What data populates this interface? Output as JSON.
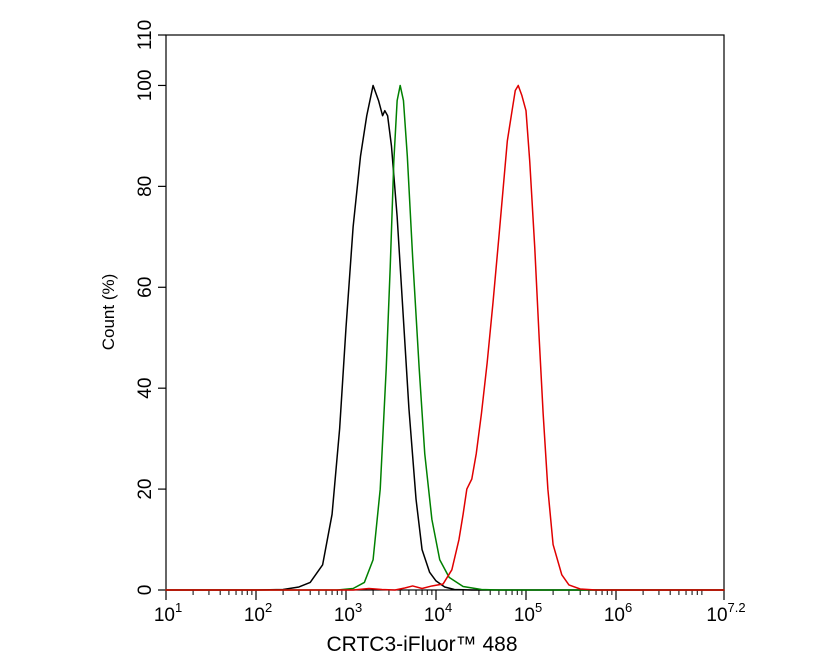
{
  "chart_data": {
    "type": "line",
    "xlabel": "CRTC3-iFluor™ 488",
    "ylabel": "Count  (%)",
    "x_scale": "log",
    "xlim": [
      10,
      15848932
    ],
    "ylim": [
      0,
      110
    ],
    "x_ticks": [
      {
        "value": 10,
        "base": "10",
        "exp": "1"
      },
      {
        "value": 100,
        "base": "10",
        "exp": "2"
      },
      {
        "value": 1000,
        "base": "10",
        "exp": "3"
      },
      {
        "value": 10000,
        "base": "10",
        "exp": "4"
      },
      {
        "value": 100000,
        "base": "10",
        "exp": "5"
      },
      {
        "value": 1000000,
        "base": "10",
        "exp": "6"
      },
      {
        "value": 15848932,
        "base": "10",
        "exp": "7.2"
      }
    ],
    "y_ticks": [
      {
        "value": 0,
        "label": "0"
      },
      {
        "value": 20,
        "label": "20"
      },
      {
        "value": 40,
        "label": "40"
      },
      {
        "value": 60,
        "label": "60"
      },
      {
        "value": 80,
        "label": "80"
      },
      {
        "value": 100,
        "label": "100"
      },
      {
        "value": 110,
        "label": "110"
      }
    ],
    "grid": false,
    "series": [
      {
        "color": "#000000",
        "points": [
          [
            10,
            0
          ],
          [
            100,
            0
          ],
          [
            200,
            0.1
          ],
          [
            300,
            0.6
          ],
          [
            400,
            1.5
          ],
          [
            550,
            5
          ],
          [
            700,
            15
          ],
          [
            850,
            32
          ],
          [
            1000,
            52
          ],
          [
            1200,
            72
          ],
          [
            1450,
            86
          ],
          [
            1700,
            94
          ],
          [
            2000,
            100
          ],
          [
            2300,
            97
          ],
          [
            2550,
            94
          ],
          [
            2700,
            95
          ],
          [
            2900,
            94
          ],
          [
            3200,
            88
          ],
          [
            3700,
            74
          ],
          [
            4200,
            58
          ],
          [
            5000,
            36
          ],
          [
            6000,
            18
          ],
          [
            7000,
            8
          ],
          [
            8500,
            3.5
          ],
          [
            10000,
            1.8
          ],
          [
            12500,
            0.6
          ],
          [
            16000,
            0.1
          ],
          [
            25000,
            0
          ],
          [
            15848932,
            0
          ]
        ]
      },
      {
        "color": "#008000",
        "points": [
          [
            10,
            0
          ],
          [
            800,
            0
          ],
          [
            1200,
            0.3
          ],
          [
            1600,
            1.5
          ],
          [
            2000,
            6
          ],
          [
            2400,
            20
          ],
          [
            2800,
            44
          ],
          [
            3100,
            64
          ],
          [
            3400,
            85
          ],
          [
            3700,
            97
          ],
          [
            4000,
            100
          ],
          [
            4350,
            97
          ],
          [
            4800,
            86
          ],
          [
            5500,
            66
          ],
          [
            6500,
            44
          ],
          [
            7500,
            27
          ],
          [
            9000,
            14
          ],
          [
            11000,
            6
          ],
          [
            14000,
            2.5
          ],
          [
            20000,
            0.7
          ],
          [
            32000,
            0.1
          ],
          [
            50000,
            0
          ],
          [
            15848932,
            0
          ]
        ]
      },
      {
        "color": "#e00000",
        "points": [
          [
            10,
            0
          ],
          [
            1200,
            0
          ],
          [
            1800,
            0.3
          ],
          [
            2500,
            0.1
          ],
          [
            3500,
            0
          ],
          [
            4500,
            0.4
          ],
          [
            5500,
            0.8
          ],
          [
            7000,
            0.3
          ],
          [
            9000,
            0.8
          ],
          [
            12000,
            1.2
          ],
          [
            15000,
            4
          ],
          [
            18000,
            10
          ],
          [
            20000,
            15
          ],
          [
            22000,
            20
          ],
          [
            25000,
            22
          ],
          [
            28000,
            27
          ],
          [
            32000,
            35
          ],
          [
            37000,
            45
          ],
          [
            43000,
            57
          ],
          [
            50000,
            70
          ],
          [
            56000,
            80
          ],
          [
            62000,
            89
          ],
          [
            70000,
            95
          ],
          [
            76000,
            99
          ],
          [
            82000,
            100
          ],
          [
            90000,
            98
          ],
          [
            100000,
            95
          ],
          [
            110000,
            85
          ],
          [
            125000,
            68
          ],
          [
            140000,
            50
          ],
          [
            155000,
            35
          ],
          [
            175000,
            20
          ],
          [
            200000,
            9
          ],
          [
            250000,
            3
          ],
          [
            300000,
            1
          ],
          [
            400000,
            0.2
          ],
          [
            600000,
            0
          ],
          [
            15848932,
            0
          ]
        ]
      }
    ]
  }
}
